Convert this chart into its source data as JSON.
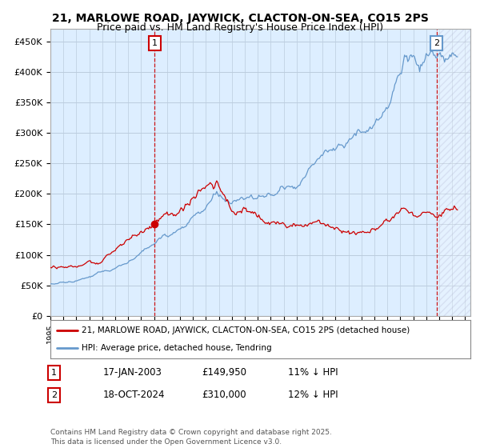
{
  "title": "21, MARLOWE ROAD, JAYWICK, CLACTON-ON-SEA, CO15 2PS",
  "subtitle": "Price paid vs. HM Land Registry's House Price Index (HPI)",
  "title_fontsize": 10,
  "subtitle_fontsize": 9,
  "bg_color": "#ffffff",
  "plot_bg_color": "#ddeeff",
  "grid_color": "#bbccdd",
  "line1_color": "#cc0000",
  "line2_color": "#6699cc",
  "line1_label": "21, MARLOWE ROAD, JAYWICK, CLACTON-ON-SEA, CO15 2PS (detached house)",
  "line2_label": "HPI: Average price, detached house, Tendring",
  "yticks": [
    0,
    50000,
    100000,
    150000,
    200000,
    250000,
    300000,
    350000,
    400000,
    450000
  ],
  "ytick_labels": [
    "£0",
    "£50K",
    "£100K",
    "£150K",
    "£200K",
    "£250K",
    "£300K",
    "£350K",
    "£400K",
    "£450K"
  ],
  "table_rows": [
    {
      "num": "1",
      "date": "17-JAN-2003",
      "price": "£149,950",
      "note": "11% ↓ HPI"
    },
    {
      "num": "2",
      "date": "18-OCT-2024",
      "price": "£310,000",
      "note": "12% ↓ HPI"
    }
  ],
  "footer": "Contains HM Land Registry data © Crown copyright and database right 2025.\nThis data is licensed under the Open Government Licence v3.0.",
  "x_start_year": 1995,
  "x_end_year": 2027
}
